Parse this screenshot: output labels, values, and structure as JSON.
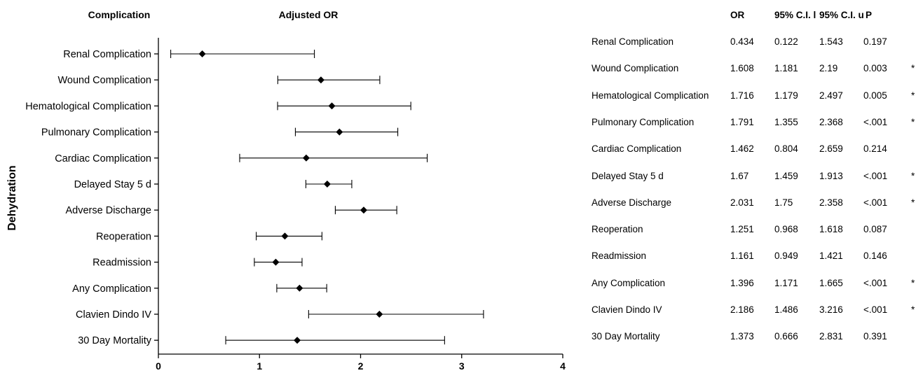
{
  "chart_data": {
    "type": "forest",
    "title": "",
    "headers": {
      "complication": "Complication",
      "adjusted_or": "Adjusted OR",
      "or": "OR",
      "ci_low": "95% C.I. l",
      "ci_high": "95% C.I. u",
      "p": "P"
    },
    "ylabel": "Dehydration",
    "xlim": [
      0,
      4
    ],
    "xticks": [
      "0",
      "1",
      "2",
      "3",
      "4"
    ],
    "rows": [
      {
        "label": "Renal Complication",
        "or": "0.434",
        "lo": "0.122",
        "hi": "1.543",
        "p": "0.197",
        "sig": ""
      },
      {
        "label": "Wound Complication",
        "or": "1.608",
        "lo": "1.181",
        "hi": "2.19",
        "p": "0.003",
        "sig": "*"
      },
      {
        "label": "Hematological Complication",
        "or": "1.716",
        "lo": "1.179",
        "hi": "2.497",
        "p": "0.005",
        "sig": "*"
      },
      {
        "label": "Pulmonary Complication",
        "or": "1.791",
        "lo": "1.355",
        "hi": "2.368",
        "p": "<.001",
        "sig": "*"
      },
      {
        "label": "Cardiac Complication",
        "or": "1.462",
        "lo": "0.804",
        "hi": "2.659",
        "p": "0.214",
        "sig": ""
      },
      {
        "label": "Delayed Stay 5 d",
        "or": "1.67",
        "lo": "1.459",
        "hi": "1.913",
        "p": "<.001",
        "sig": "*"
      },
      {
        "label": "Adverse Discharge",
        "or": "2.031",
        "lo": "1.75",
        "hi": "2.358",
        "p": "<.001",
        "sig": "*"
      },
      {
        "label": "Reoperation",
        "or": "1.251",
        "lo": "0.968",
        "hi": "1.618",
        "p": "0.087",
        "sig": ""
      },
      {
        "label": "Readmission",
        "or": "1.161",
        "lo": "0.949",
        "hi": "1.421",
        "p": "0.146",
        "sig": ""
      },
      {
        "label": "Any Complication",
        "or": "1.396",
        "lo": "1.171",
        "hi": "1.665",
        "p": "<.001",
        "sig": "*"
      },
      {
        "label": "Clavien Dindo IV",
        "or": "2.186",
        "lo": "1.486",
        "hi": "3.216",
        "p": "<.001",
        "sig": "*"
      },
      {
        "label": "30 Day Mortality",
        "or": "1.373",
        "lo": "0.666",
        "hi": "2.831",
        "p": "0.391",
        "sig": ""
      }
    ]
  }
}
